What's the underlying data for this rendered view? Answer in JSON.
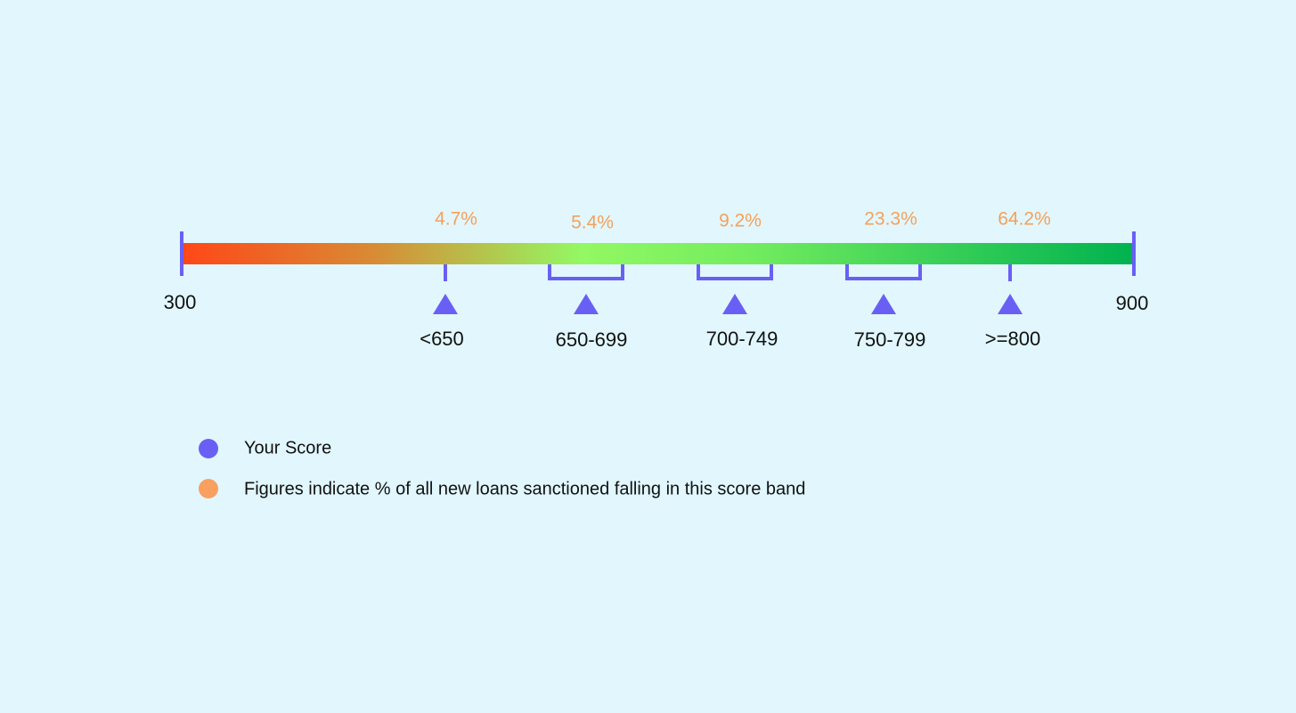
{
  "scale": {
    "min": "300",
    "max": "900"
  },
  "bands": [
    {
      "label": "<650",
      "share": "4.7%"
    },
    {
      "label": "650-699",
      "share": "5.4%"
    },
    {
      "label": "700-749",
      "share": "9.2%"
    },
    {
      "label": "750-799",
      "share": "23.3%"
    },
    {
      "label": ">=800",
      "share": "64.2%"
    }
  ],
  "legend": [
    {
      "label": "Your Score"
    },
    {
      "label": "Figures indicate % of all new loans sanctioned falling in this score band"
    }
  ]
}
